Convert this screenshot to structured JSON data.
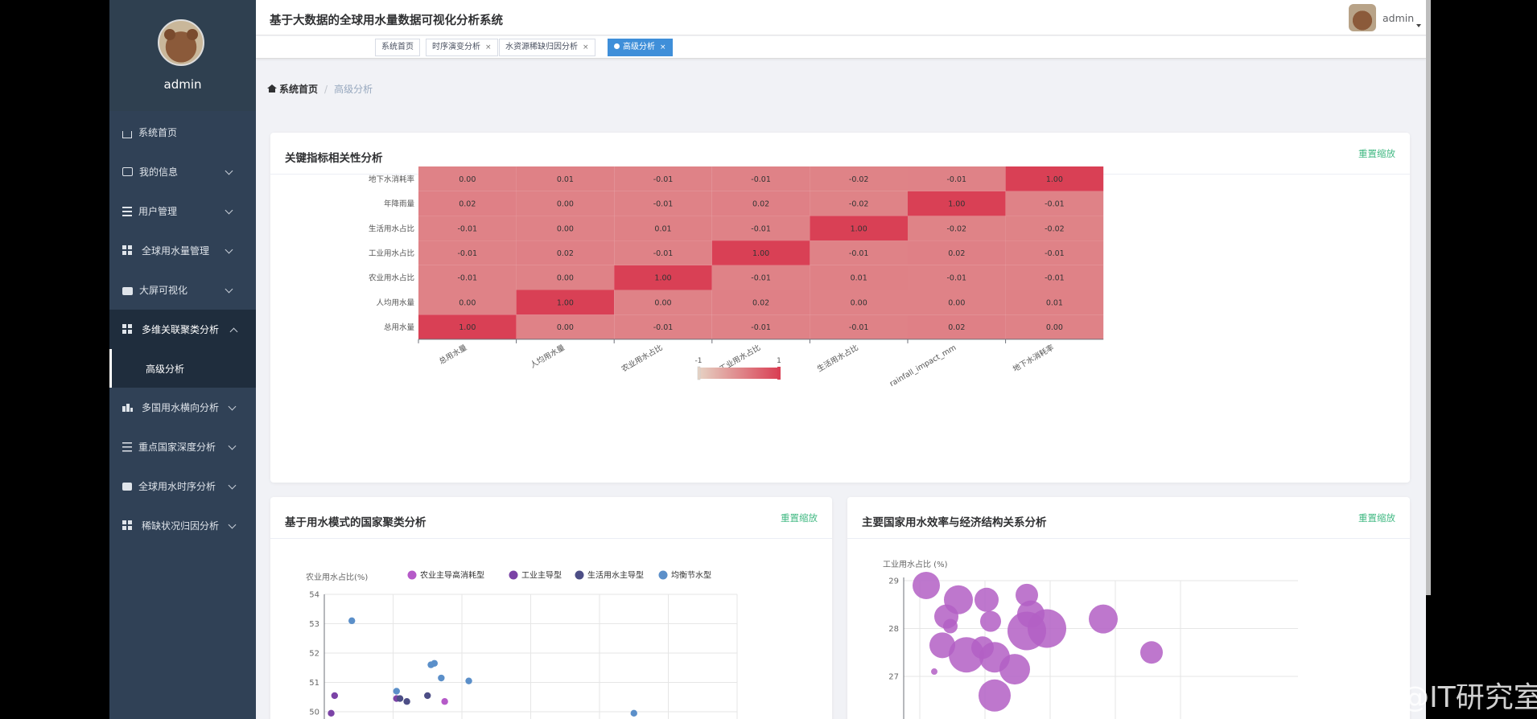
{
  "app": {
    "title": "基于大数据的全球用水量数据可视化分析系统",
    "user": "admin"
  },
  "sidebar": {
    "profile_name": "admin",
    "items": [
      {
        "label": "系统首页",
        "icon": "home-icon"
      },
      {
        "label": "我的信息",
        "icon": "card-icon"
      },
      {
        "label": "用户管理",
        "icon": "list-icon"
      },
      {
        "label": "全球用水量管理",
        "icon": "grid-icon"
      },
      {
        "label": "大屏可视化",
        "icon": "briefcase-icon"
      },
      {
        "label": "多维关联聚类分析",
        "icon": "grid-icon",
        "expanded": true,
        "children": [
          {
            "label": "高级分析",
            "active": true
          }
        ]
      },
      {
        "label": "多国用水横向分析",
        "icon": "chart-icon"
      },
      {
        "label": "重点国家深度分析",
        "icon": "sliders-icon"
      },
      {
        "label": "全球用水时序分析",
        "icon": "chat-icon"
      },
      {
        "label": "稀缺状况归因分析",
        "icon": "grid-icon"
      }
    ]
  },
  "tags": [
    {
      "label": "系统首页",
      "closable": false
    },
    {
      "label": "时序演变分析",
      "closable": true
    },
    {
      "label": "水资源稀缺归因分析",
      "closable": true
    },
    {
      "label": "高级分析",
      "closable": true,
      "active": true
    }
  ],
  "tag_close": "×",
  "breadcrumb": {
    "home": "系统首页",
    "separator": "/",
    "current": "高级分析"
  },
  "cards": {
    "heatmap": {
      "title": "关键指标相关性分析",
      "reset": "重置缩放"
    },
    "cluster": {
      "title": "基于用水模式的国家聚类分析",
      "reset": "重置缩放"
    },
    "bubble": {
      "title": "主要国家用水效率与经济结构关系分析",
      "reset": "重置缩放"
    }
  },
  "watermark": "CSDN @IT研究室",
  "chart_data": [
    {
      "type": "heatmap",
      "title": "",
      "x_labels": [
        "总用水量",
        "人均用水量",
        "农业用水占比",
        "工业用水占比",
        "生活用水占比",
        "rainfall_impact_mm",
        "地下水消耗率"
      ],
      "y_labels": [
        "总用水量",
        "人均用水量",
        "农业用水占比",
        "工业用水占比",
        "生活用水占比",
        "年降雨量",
        "地下水消耗率"
      ],
      "values": [
        [
          1.0,
          0.0,
          -0.01,
          -0.01,
          -0.01,
          0.02,
          0.0
        ],
        [
          0.0,
          1.0,
          0.0,
          0.02,
          0.0,
          0.0,
          0.01
        ],
        [
          -0.01,
          0.0,
          1.0,
          -0.01,
          0.01,
          -0.01,
          -0.01
        ],
        [
          -0.01,
          0.02,
          -0.01,
          1.0,
          -0.01,
          0.02,
          -0.01
        ],
        [
          -0.01,
          0.0,
          0.01,
          -0.01,
          1.0,
          -0.02,
          -0.02
        ],
        [
          0.02,
          0.0,
          -0.01,
          0.02,
          -0.02,
          1.0,
          -0.01
        ],
        [
          0.0,
          0.01,
          -0.01,
          -0.01,
          -0.02,
          -0.01,
          1.0
        ]
      ],
      "visual_map": {
        "min": -1,
        "max": 1,
        "min_label": "-1",
        "max_label": "1",
        "color_low": "#e6d2c3",
        "color_high": "#d94055"
      }
    },
    {
      "type": "scatter",
      "ylabel": "农业用水占比(%)",
      "y_ticks": [
        50,
        51,
        52,
        53,
        54
      ],
      "x_range": [
        0,
        6
      ],
      "legend": "top",
      "series": [
        {
          "name": "农业主导高消耗型",
          "color": "#b55ac8",
          "points": [
            [
              1.75,
              50.35
            ]
          ]
        },
        {
          "name": "工业主导型",
          "color": "#7b43a6",
          "points": [
            [
              0.15,
              50.55
            ],
            [
              1.05,
              50.45
            ],
            [
              0.1,
              49.95
            ]
          ]
        },
        {
          "name": "生活用水主导型",
          "color": "#4d4e86",
          "points": [
            [
              1.1,
              50.45
            ],
            [
              1.5,
              50.55
            ],
            [
              1.2,
              50.35
            ]
          ]
        },
        {
          "name": "均衡节水型",
          "color": "#5b8fc9",
          "points": [
            [
              0.4,
              53.1
            ],
            [
              1.05,
              50.7
            ],
            [
              1.55,
              51.6
            ],
            [
              1.6,
              51.65
            ],
            [
              1.7,
              51.15
            ],
            [
              2.1,
              51.05
            ],
            [
              4.5,
              49.95
            ]
          ]
        }
      ]
    },
    {
      "type": "scatter",
      "ylabel": "工业用水占比 (%)",
      "y_ticks": [
        27,
        28,
        29
      ],
      "color": "#b35fc4",
      "points": [
        {
          "x": 0.1,
          "y": 28.9,
          "size": 34
        },
        {
          "x": 0.2,
          "y": 27.1,
          "size": 8
        },
        {
          "x": 0.35,
          "y": 28.25,
          "size": 30
        },
        {
          "x": 0.4,
          "y": 28.05,
          "size": 18
        },
        {
          "x": 0.3,
          "y": 27.65,
          "size": 32
        },
        {
          "x": 0.5,
          "y": 28.6,
          "size": 36
        },
        {
          "x": 0.6,
          "y": 27.45,
          "size": 44
        },
        {
          "x": 0.85,
          "y": 28.6,
          "size": 30
        },
        {
          "x": 0.9,
          "y": 28.15,
          "size": 26
        },
        {
          "x": 0.8,
          "y": 27.6,
          "size": 28
        },
        {
          "x": 0.95,
          "y": 27.4,
          "size": 38
        },
        {
          "x": 0.95,
          "y": 26.6,
          "size": 40
        },
        {
          "x": 1.2,
          "y": 27.15,
          "size": 38
        },
        {
          "x": 1.35,
          "y": 28.7,
          "size": 28
        },
        {
          "x": 1.4,
          "y": 28.3,
          "size": 34
        },
        {
          "x": 1.35,
          "y": 27.95,
          "size": 48
        },
        {
          "x": 1.6,
          "y": 28.0,
          "size": 48
        },
        {
          "x": 2.3,
          "y": 28.2,
          "size": 36
        },
        {
          "x": 2.9,
          "y": 27.5,
          "size": 28
        }
      ]
    }
  ]
}
